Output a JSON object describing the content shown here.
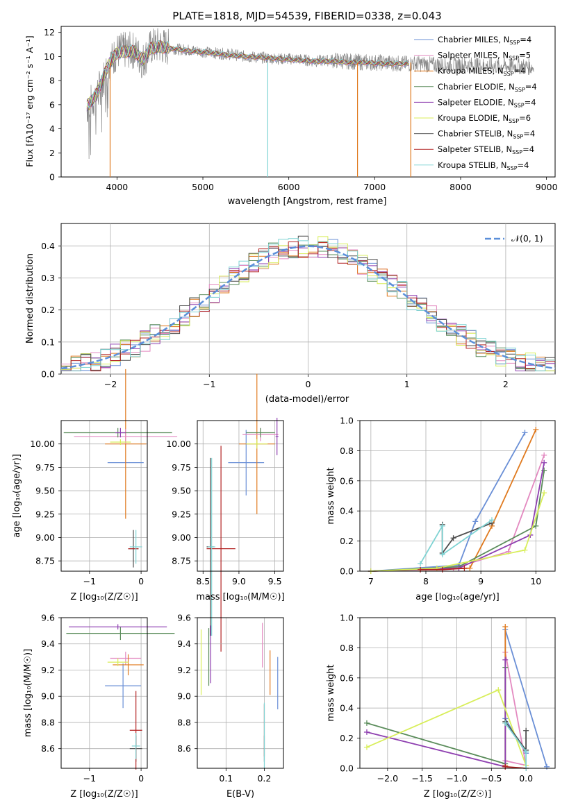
{
  "title": "PLATE=1818, MJD=54539, FIBERID=0338, z=0.043",
  "colors": {
    "Chabrier MILES": "#6a8fd6",
    "Salpeter MILES": "#e389c0",
    "Kroupa MILES": "#e07a1f",
    "Chabrier ELODIE": "#5a8c5a",
    "Salpeter ELODIE": "#8e3fb0",
    "Kroupa ELODIE": "#d8ee5a",
    "Chabrier STELIB": "#4d4d4d",
    "Salpeter STELIB": "#b22222",
    "Kroupa STELIB": "#7fd3d3",
    "data": "#888888",
    "gauss": "#5b8fd9"
  },
  "panels": {
    "spectrum": {
      "xlabel": "wavelength [Angstrom, rest frame]",
      "ylabel": "Flux [fλ10⁻¹⁷ erg cm⁻² s⁻¹ A⁻¹]",
      "xticks": [
        "4000",
        "5000",
        "6000",
        "7000",
        "8000",
        "9000"
      ],
      "yticks": [
        "0",
        "2",
        "4",
        "6",
        "8",
        "10",
        "12"
      ],
      "legend": [
        {
          "label": "Chabrier MILES, N",
          "sub": "SSP",
          "n": "=4",
          "key": "Chabrier MILES"
        },
        {
          "label": "Salpeter MILES, N",
          "sub": "SSP",
          "n": "=5",
          "key": "Salpeter MILES"
        },
        {
          "label": "Kroupa MILES, N",
          "sub": "SSP",
          "n": "=4",
          "key": "Kroupa MILES"
        },
        {
          "label": "Chabrier ELODIE, N",
          "sub": "SSP",
          "n": "=4",
          "key": "Chabrier ELODIE"
        },
        {
          "label": "Salpeter ELODIE, N",
          "sub": "SSP",
          "n": "=4",
          "key": "Salpeter ELODIE"
        },
        {
          "label": "Kroupa ELODIE, N",
          "sub": "SSP",
          "n": "=6",
          "key": "Kroupa ELODIE"
        },
        {
          "label": "Chabrier STELIB, N",
          "sub": "SSP",
          "n": "=4",
          "key": "Chabrier STELIB"
        },
        {
          "label": "Salpeter STELIB, N",
          "sub": "SSP",
          "n": "=4",
          "key": "Salpeter STELIB"
        },
        {
          "label": "Kroupa STELIB, N",
          "sub": "SSP",
          "n": "=4",
          "key": "Kroupa STELIB"
        }
      ]
    },
    "residuals": {
      "xlabel": "(data-model)/error",
      "ylabel": "Normed distribution",
      "xticks": [
        "−2",
        "−1",
        "0",
        "1",
        "2"
      ],
      "yticks": [
        "0.0",
        "0.1",
        "0.2",
        "0.3",
        "0.4"
      ],
      "legend": "𝒩(0, 1)"
    },
    "age_z": {
      "xlabel": "Z [log₁₀(Z/Z☉)]",
      "ylabel": "age  [log₁₀(age/yr)]",
      "xticks": [
        "−1",
        "0"
      ],
      "yticks": [
        "8.75",
        "9.00",
        "9.25",
        "9.50",
        "9.75",
        "10.00"
      ]
    },
    "age_mass": {
      "xlabel": "mass [log₁₀(M/M☉)]",
      "xticks": [
        "8.5",
        "9.0",
        "9.5"
      ],
      "yticks": [
        "8.75",
        "9.00",
        "9.25",
        "9.50",
        "9.75",
        "10.00"
      ]
    },
    "weight_age": {
      "xlabel": "age  [log₁₀(age/yr)]",
      "ylabel": "mass weight",
      "xticks": [
        "7",
        "8",
        "9",
        "10"
      ],
      "yticks": [
        "0.0",
        "0.2",
        "0.4",
        "0.6",
        "0.8",
        "1.0"
      ]
    },
    "mass_z": {
      "xlabel": "Z [log₁₀(Z/Z☉)]",
      "ylabel": "mass [log₁₀(M/M☉)]",
      "xticks": [
        "−1",
        "0"
      ],
      "yticks": [
        "8.6",
        "8.8",
        "9.0",
        "9.2",
        "9.4",
        "9.6"
      ]
    },
    "mass_ebv": {
      "xlabel": "E(B-V)",
      "xticks": [
        "0.1",
        "0.2"
      ],
      "yticks": [
        "8.6",
        "8.8",
        "9.0",
        "9.2",
        "9.4",
        "9.6"
      ]
    },
    "weight_z": {
      "xlabel": "Z [log₁₀(Z/Z☉)]",
      "ylabel": "mass weight",
      "xticks": [
        "−2.0",
        "−1.5",
        "−1.0",
        "−0.5",
        "0.0"
      ],
      "yticks": [
        "0.0",
        "0.2",
        "0.4",
        "0.6",
        "0.8",
        "1.0"
      ]
    }
  },
  "chart_data": [
    {
      "type": "line",
      "title": "PLATE=1818, MJD=54539, FIBERID=0338, z=0.043",
      "xlabel": "wavelength [Angstrom, rest frame]",
      "ylabel": "Flux [fλ10⁻¹⁷ erg cm⁻² s⁻¹ A⁻¹]",
      "xlim": [
        3350,
        9100
      ],
      "ylim": [
        0,
        12.5
      ],
      "data_series": {
        "name": "data",
        "x": [
          3650,
          3700,
          3750,
          3800,
          3850,
          3900,
          3950,
          4000,
          4100,
          4200,
          4300,
          4400,
          4500,
          4700,
          4900,
          5100,
          5300,
          5500,
          5700,
          5900,
          6100,
          6300,
          6500,
          6700,
          6900,
          7100,
          7300,
          7500,
          7700,
          7900,
          8100,
          8300,
          8500,
          8700,
          8850
        ],
        "y": [
          5.8,
          6.2,
          6.6,
          7.4,
          8.3,
          9.3,
          9.8,
          10.4,
          10.5,
          10.5,
          9.6,
          10.8,
          10.9,
          10.6,
          10.5,
          10.3,
          10.2,
          10.0,
          9.9,
          9.8,
          9.8,
          9.6,
          9.7,
          9.6,
          9.5,
          9.5,
          9.4,
          9.4,
          9.3,
          9.3,
          9.3,
          9.2,
          9.2,
          9.2,
          9.1
        ]
      },
      "model_x": [
        3650,
        3700,
        3750,
        3800,
        3850,
        3900,
        3950,
        4000,
        4100,
        4200,
        4300,
        4400,
        4500,
        4700,
        4900,
        5100,
        5300,
        5500,
        5700,
        5900,
        6100,
        6300,
        6500,
        6700,
        6900,
        7100,
        7300,
        7400
      ],
      "model_y": [
        5.9,
        6.3,
        6.7,
        7.5,
        8.4,
        9.3,
        9.8,
        10.3,
        10.4,
        10.4,
        9.7,
        10.7,
        10.8,
        10.6,
        10.4,
        10.3,
        10.1,
        10.0,
        9.9,
        9.8,
        9.7,
        9.6,
        9.6,
        9.5,
        9.5,
        9.4,
        9.4,
        9.4
      ],
      "drops": [
        {
          "x": 3920,
          "key": "Kroupa MILES"
        },
        {
          "x": 5755,
          "key": "Kroupa STELIB"
        },
        {
          "x": 6800,
          "key": "Kroupa MILES"
        },
        {
          "x": 7420,
          "key": "Kroupa MILES"
        }
      ]
    },
    {
      "type": "line",
      "title": "",
      "xlabel": "(data-model)/error",
      "ylabel": "Normed distribution",
      "xlim": [
        -2.5,
        2.5
      ],
      "ylim": [
        0,
        0.47
      ],
      "gaussian": {
        "name": "𝒩(0, 1)",
        "mu": 0,
        "sigma": 1
      },
      "hist_bins": 50
    },
    {
      "type": "scatter",
      "xlabel": "Z [log₁₀(Z/Z☉)]",
      "ylabel": "age  [log₁₀(age/yr)]",
      "xlim": [
        -1.55,
        0.12
      ],
      "ylim": [
        8.64,
        10.25
      ],
      "points": [
        {
          "key": "Chabrier MILES",
          "x": -0.3,
          "y": 9.8,
          "xerr": 0.35,
          "yerr": 0.0
        },
        {
          "key": "Kroupa MILES",
          "x": -0.3,
          "y": 10.0,
          "xerr": 0.4,
          "yerr": 0.8
        },
        {
          "key": "Salpeter MILES",
          "x": -0.3,
          "y": 10.08,
          "xerr": 1.0,
          "yerr": 0.08
        },
        {
          "key": "Chabrier ELODIE",
          "x": -0.45,
          "y": 10.12,
          "xerr": 1.05,
          "yerr": 0.05
        },
        {
          "key": "Salpeter ELODIE",
          "x": -0.4,
          "y": 10.12,
          "xerr": 0.1,
          "yerr": 0.05
        },
        {
          "key": "Kroupa ELODIE",
          "x": -0.4,
          "y": 10.02,
          "xerr": 0.2,
          "yerr": 0.03
        },
        {
          "key": "Chabrier STELIB",
          "x": -0.15,
          "y": 8.88,
          "xerr": 0.1,
          "yerr": 0.2
        },
        {
          "key": "Salpeter STELIB",
          "x": -0.15,
          "y": 8.88,
          "xerr": 0.1,
          "yerr": 0.0
        },
        {
          "key": "Kroupa STELIB",
          "x": -0.1,
          "y": 8.9,
          "xerr": 0.12,
          "yerr": 0.18
        }
      ]
    },
    {
      "type": "scatter",
      "xlabel": "mass [log₁₀(M/M☉)]",
      "xlim": [
        8.42,
        9.62
      ],
      "ylim": [
        8.64,
        10.25
      ],
      "points": [
        {
          "key": "Chabrier MILES",
          "x": 9.1,
          "y": 9.8,
          "xerr": 0.25,
          "yerr": 0.35
        },
        {
          "key": "Kroupa MILES",
          "x": 9.25,
          "y": 10.0,
          "xerr": 0.25,
          "yerr": 0.75
        },
        {
          "key": "Salpeter MILES",
          "x": 9.3,
          "y": 10.1,
          "xerr": 0.25,
          "yerr": 0.07
        },
        {
          "key": "Chabrier ELODIE",
          "x": 9.3,
          "y": 10.12,
          "xerr": 0.2,
          "yerr": 0.05
        },
        {
          "key": "Salpeter ELODIE",
          "x": 9.53,
          "y": 10.08,
          "xerr": 0.02,
          "yerr": 0.2
        },
        {
          "key": "Kroupa ELODIE",
          "x": 9.25,
          "y": 10.0,
          "xerr": 0.15,
          "yerr": 0.05
        },
        {
          "key": "Chabrier STELIB",
          "x": 8.6,
          "y": 8.9,
          "xerr": 0.05,
          "yerr": 0.95
        },
        {
          "key": "Salpeter STELIB",
          "x": 8.75,
          "y": 8.88,
          "xerr": 0.2,
          "yerr": 1.1
        },
        {
          "key": "Kroupa STELIB",
          "x": 8.62,
          "y": 8.9,
          "xerr": 0.05,
          "yerr": 0.95
        }
      ]
    },
    {
      "type": "line",
      "xlabel": "age  [log₁₀(age/yr)]",
      "ylabel": "mass weight",
      "xlim": [
        6.8,
        10.35
      ],
      "ylim": [
        0,
        1.0
      ],
      "series": [
        {
          "key": "Chabrier MILES",
          "x": [
            7.0,
            8.6,
            8.9,
            9.8
          ],
          "y": [
            0.0,
            0.04,
            0.33,
            0.92
          ]
        },
        {
          "key": "Salpeter MILES",
          "x": [
            7.0,
            8.5,
            9.5,
            10.15
          ],
          "y": [
            0.0,
            0.02,
            0.13,
            0.77
          ]
        },
        {
          "key": "Kroupa MILES",
          "x": [
            7.0,
            8.8,
            9.2,
            10.0
          ],
          "y": [
            0.0,
            0.02,
            0.3,
            0.94
          ]
        },
        {
          "key": "Chabrier ELODIE",
          "x": [
            7.0,
            8.6,
            10.0,
            10.15
          ],
          "y": [
            0.0,
            0.03,
            0.3,
            0.67
          ]
        },
        {
          "key": "Salpeter ELODIE",
          "x": [
            7.0,
            8.6,
            9.9,
            10.15
          ],
          "y": [
            0.0,
            0.02,
            0.24,
            0.72
          ]
        },
        {
          "key": "Kroupa ELODIE",
          "x": [
            7.0,
            8.2,
            9.8,
            10.15
          ],
          "y": [
            0.0,
            0.02,
            0.14,
            0.52
          ]
        },
        {
          "key": "Chabrier STELIB",
          "x": [
            8.3,
            8.3,
            8.5,
            9.2
          ],
          "y": [
            0.31,
            0.12,
            0.22,
            0.32
          ]
        },
        {
          "key": "Salpeter STELIB",
          "x": [
            7.9,
            8.3,
            8.7
          ],
          "y": [
            0.01,
            0.01,
            0.02
          ]
        },
        {
          "key": "Kroupa STELIB",
          "x": [
            7.9,
            8.3,
            8.3,
            9.2
          ],
          "y": [
            0.05,
            0.3,
            0.11,
            0.34
          ]
        }
      ]
    },
    {
      "type": "scatter",
      "xlabel": "Z [log₁₀(Z/Z☉)]",
      "ylabel": "mass [log₁₀(M/M☉)]",
      "xlim": [
        -1.55,
        0.12
      ],
      "ylim": [
        8.45,
        9.6
      ],
      "points": [
        {
          "key": "Chabrier MILES",
          "x": -0.35,
          "y": 9.08,
          "xerr": 0.35,
          "yerr": 0.17
        },
        {
          "key": "Salpeter MILES",
          "x": -0.3,
          "y": 9.29,
          "xerr": 0.3,
          "yerr": 0.05
        },
        {
          "key": "Kroupa MILES",
          "x": -0.25,
          "y": 9.24,
          "xerr": 0.3,
          "yerr": 0.08
        },
        {
          "key": "Chabrier ELODIE",
          "x": -0.4,
          "y": 9.48,
          "xerr": 1.05,
          "yerr": 0.05
        },
        {
          "key": "Salpeter ELODIE",
          "x": -0.45,
          "y": 9.53,
          "xerr": 0.95,
          "yerr": 0.02
        },
        {
          "key": "Kroupa ELODIE",
          "x": -0.45,
          "y": 9.26,
          "xerr": 0.2,
          "yerr": 0.03
        },
        {
          "key": "Chabrier STELIB",
          "x": -0.1,
          "y": 8.6,
          "xerr": 0.12,
          "yerr": 0.1
        },
        {
          "key": "Salpeter STELIB",
          "x": -0.1,
          "y": 8.74,
          "xerr": 0.12,
          "yerr": 0.3
        },
        {
          "key": "Kroupa STELIB",
          "x": -0.1,
          "y": 8.62,
          "xerr": 0.08,
          "yerr": 0.1
        }
      ]
    },
    {
      "type": "scatter",
      "xlabel": "E(B-V)",
      "xlim": [
        0.025,
        0.25
      ],
      "ylim": [
        8.45,
        9.6
      ],
      "points": [
        {
          "key": "Chabrier MILES",
          "x": 0.235,
          "y": 9.1,
          "xerr": 0.0,
          "yerr": 0.2
        },
        {
          "key": "Salpeter MILES",
          "x": 0.195,
          "y": 9.39,
          "xerr": 0.0,
          "yerr": 0.17
        },
        {
          "key": "Kroupa MILES",
          "x": 0.215,
          "y": 9.18,
          "xerr": 0.0,
          "yerr": 0.17
        },
        {
          "key": "Chabrier ELODIE",
          "x": 0.055,
          "y": 9.3,
          "xerr": 0.0,
          "yerr": 0.22
        },
        {
          "key": "Salpeter ELODIE",
          "x": 0.06,
          "y": 9.32,
          "xerr": 0.0,
          "yerr": 0.22
        },
        {
          "key": "Kroupa ELODIE",
          "x": 0.035,
          "y": 9.26,
          "xerr": 0.0,
          "yerr": 0.25
        },
        {
          "key": "Chabrier STELIB",
          "x": 0.2,
          "y": 8.6,
          "xerr": 0.0,
          "yerr": 0.1
        },
        {
          "key": "Salpeter STELIB",
          "x": 0.2,
          "y": 8.74,
          "xerr": 0.0,
          "yerr": 0.2
        },
        {
          "key": "Kroupa STELIB",
          "x": 0.2,
          "y": 8.7,
          "xerr": 0.0,
          "yerr": 0.25
        }
      ]
    },
    {
      "type": "line",
      "xlabel": "Z [log₁₀(Z/Z☉)]",
      "ylabel": "mass weight",
      "xlim": [
        -2.4,
        0.42
      ],
      "ylim": [
        0,
        1.0
      ],
      "series": [
        {
          "key": "Chabrier MILES",
          "x": [
            0.3,
            -0.3,
            -0.3,
            0.0
          ],
          "y": [
            0.01,
            0.92,
            0.33,
            0.1
          ]
        },
        {
          "key": "Salpeter MILES",
          "x": [
            -0.3,
            0.0,
            -0.3
          ],
          "y": [
            0.77,
            0.02,
            0.05
          ]
        },
        {
          "key": "Kroupa MILES",
          "x": [
            -0.3,
            -0.3,
            -0.3
          ],
          "y": [
            0.94,
            0.3,
            0.02
          ]
        },
        {
          "key": "Chabrier ELODIE",
          "x": [
            -2.3,
            -0.3,
            -0.3
          ],
          "y": [
            0.3,
            0.03,
            0.67
          ]
        },
        {
          "key": "Salpeter ELODIE",
          "x": [
            -2.3,
            -0.3,
            -0.3
          ],
          "y": [
            0.24,
            0.01,
            0.72
          ]
        },
        {
          "key": "Kroupa ELODIE",
          "x": [
            -2.3,
            -0.4,
            0.0
          ],
          "y": [
            0.14,
            0.52,
            0.02
          ]
        },
        {
          "key": "Chabrier STELIB",
          "x": [
            -0.3,
            0.0,
            0.0
          ],
          "y": [
            0.31,
            0.12,
            0.25
          ]
        },
        {
          "key": "Salpeter STELIB",
          "x": [
            -0.3,
            0.0
          ],
          "y": [
            0.01,
            0.0
          ]
        },
        {
          "key": "Kroupa STELIB",
          "x": [
            -0.3,
            0.0,
            0.0
          ],
          "y": [
            0.3,
            0.11,
            0.0
          ]
        }
      ]
    }
  ]
}
